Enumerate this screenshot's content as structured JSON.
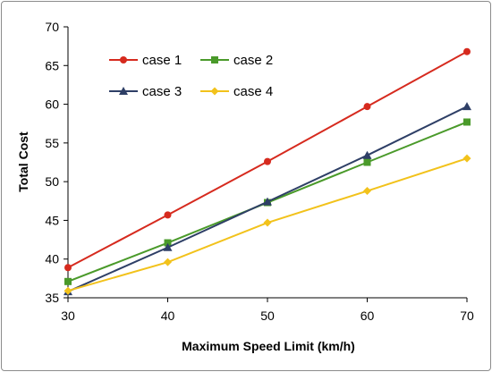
{
  "chart_data": {
    "type": "line",
    "title": "",
    "xlabel": "Maximum Speed Limit (km/h)",
    "ylabel": "Total Cost",
    "x": [
      30,
      40,
      50,
      60,
      70
    ],
    "xlim": [
      30,
      70
    ],
    "ylim": [
      35,
      70
    ],
    "xticks": [
      30,
      40,
      50,
      60,
      70
    ],
    "yticks": [
      35,
      40,
      45,
      50,
      55,
      60,
      65,
      70
    ],
    "grid": false,
    "legend_position": "top-left",
    "series": [
      {
        "name": "case 1",
        "color": "#d62a1e",
        "marker": "circle",
        "values": [
          38.9,
          45.7,
          52.6,
          59.7,
          66.8
        ]
      },
      {
        "name": "case 2",
        "color": "#4a9a2a",
        "marker": "square",
        "values": [
          37.1,
          42.1,
          47.3,
          52.5,
          57.7
        ]
      },
      {
        "name": "case 3",
        "color": "#2e3f66",
        "marker": "triangle",
        "values": [
          35.8,
          41.5,
          47.4,
          53.4,
          59.7
        ]
      },
      {
        "name": "case 4",
        "color": "#f2c21b",
        "marker": "diamond",
        "values": [
          35.9,
          39.6,
          44.7,
          48.8,
          53.0
        ]
      }
    ]
  }
}
